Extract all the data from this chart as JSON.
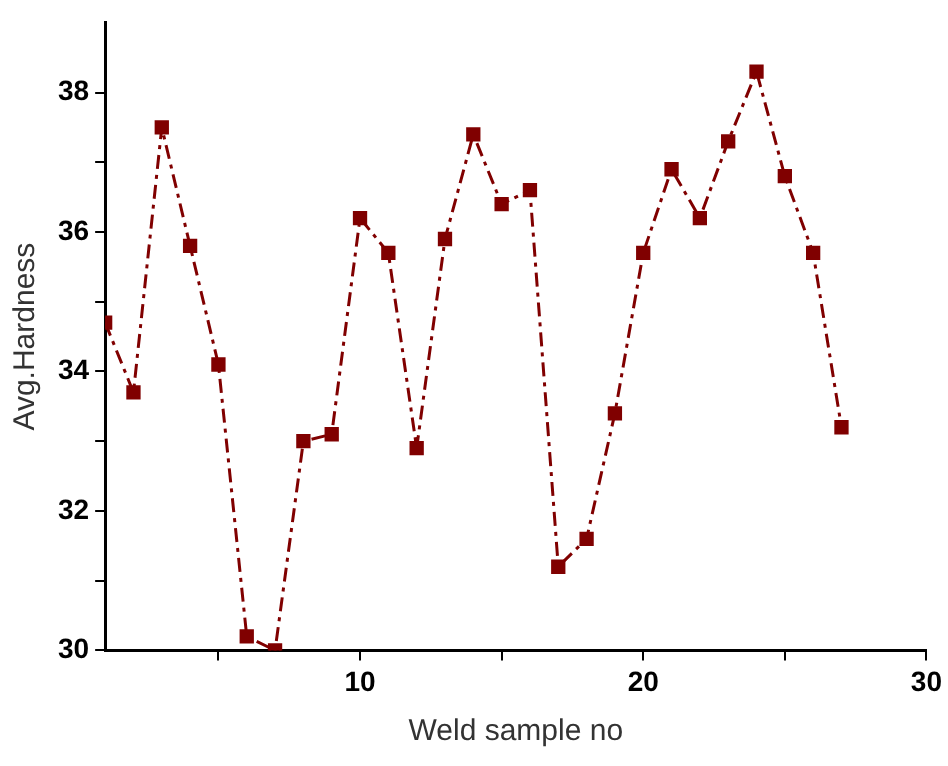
{
  "chart_data": {
    "type": "line",
    "xlabel": "Weld sample no",
    "ylabel": "Avg.Hardness",
    "x": [
      1,
      2,
      3,
      4,
      5,
      6,
      7,
      8,
      9,
      10,
      11,
      12,
      13,
      14,
      15,
      16,
      17,
      18,
      19,
      20,
      21,
      22,
      23,
      24,
      25,
      26,
      27
    ],
    "series": [
      {
        "color": "#800000",
        "values": [
          34.7,
          33.7,
          37.5,
          35.8,
          34.1,
          30.2,
          30.0,
          33.0,
          33.1,
          36.2,
          35.7,
          32.9,
          35.9,
          37.4,
          36.4,
          36.6,
          31.2,
          31.6,
          33.4,
          35.7,
          36.9,
          36.2,
          37.3,
          38.3,
          36.8,
          35.7,
          33.2
        ]
      }
    ],
    "xlim": [
      1,
      30
    ],
    "xticks": [
      {
        "value": 5,
        "label": null
      },
      10,
      {
        "value": 15,
        "label": null
      },
      20,
      {
        "value": 25,
        "label": null
      },
      30
    ],
    "ylim": [
      30,
      39
    ],
    "yticks": [
      30,
      {
        "value": 31,
        "label": null
      },
      32,
      {
        "value": 33,
        "label": null
      },
      34,
      {
        "value": 35,
        "label": null
      },
      36,
      {
        "value": 37,
        "label": null
      },
      38
    ],
    "grid": false,
    "legend": false,
    "marker": "square",
    "line_style": "dashed"
  }
}
